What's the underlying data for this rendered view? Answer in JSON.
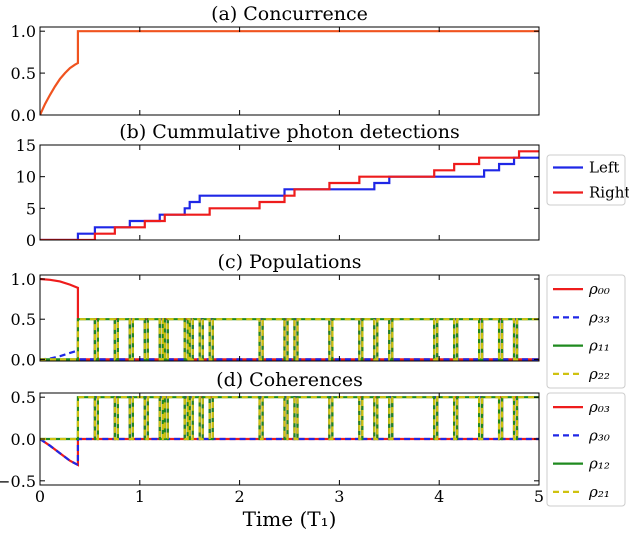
{
  "colors": {
    "orange": "#f0531f",
    "blue": "#1f27e6",
    "red": "#ee1c1c",
    "green": "#1f8a1f",
    "yellow": "#cfc210"
  },
  "xaxis": {
    "label": "Time (T₁)",
    "xlim": [
      0,
      5
    ],
    "ticks": [
      0,
      1,
      2,
      3,
      4,
      5
    ],
    "tick_labels": [
      "0",
      "1",
      "2",
      "3",
      "4",
      "5"
    ]
  },
  "chart_data": [
    {
      "id": "a",
      "type": "line",
      "title": "(a) Concurrence",
      "ylim": [
        0,
        1.05
      ],
      "yticks": [
        0,
        0.5,
        1
      ],
      "ytick_labels": [
        "0.0",
        "0.5",
        "1.0"
      ],
      "legend": null,
      "series": [
        {
          "key": "concurrence",
          "color_key": "orange",
          "dash": "solid",
          "x": [
            0,
            0.05,
            0.1,
            0.15,
            0.2,
            0.25,
            0.3,
            0.35,
            0.38,
            0.38,
            5
          ],
          "y": [
            0,
            0.13,
            0.24,
            0.34,
            0.43,
            0.5,
            0.56,
            0.6,
            0.62,
            1.0,
            1.0
          ]
        }
      ]
    },
    {
      "id": "b",
      "type": "line",
      "title": "(b) Cummulative photon detections",
      "ylim": [
        0,
        15
      ],
      "yticks": [
        0,
        5,
        10,
        15
      ],
      "ytick_labels": [
        "0",
        "5",
        "10",
        "15"
      ],
      "legend": {
        "placement": "outside-right"
      },
      "series": [
        {
          "name": "Left",
          "color_key": "blue",
          "dash": "solid",
          "steps": [
            0.38,
            0.55,
            0.9,
            1.2,
            1.45,
            1.5,
            1.6,
            2.45,
            3.35,
            3.5,
            4.45,
            4.6,
            4.75
          ]
        },
        {
          "name": "Right",
          "color_key": "red",
          "dash": "solid",
          "steps": [
            0.55,
            0.75,
            1.05,
            1.25,
            1.7,
            2.2,
            2.45,
            2.55,
            2.9,
            3.2,
            3.95,
            4.15,
            4.4,
            4.8
          ]
        }
      ]
    },
    {
      "id": "c",
      "type": "line",
      "title": "(c) Populations",
      "ylim": [
        -0.02,
        1.05
      ],
      "yticks": [
        0,
        0.5,
        1
      ],
      "ytick_labels": [
        "0.0",
        "0.5",
        "1.0"
      ],
      "legend": {
        "placement": "outside-right"
      },
      "series": [
        {
          "name": "ρ₀₀",
          "color_key": "red",
          "dash": "solid",
          "x": [
            0,
            0.1,
            0.2,
            0.3,
            0.38,
            0.38
          ],
          "y": [
            1.0,
            0.99,
            0.97,
            0.93,
            0.89,
            0.0
          ],
          "tail": "low"
        },
        {
          "name": "ρ₃₃",
          "color_key": "blue",
          "dash": "dash",
          "x": [
            0,
            0.1,
            0.2,
            0.3,
            0.38,
            0.38
          ],
          "y": [
            0.0,
            0.01,
            0.04,
            0.08,
            0.11,
            0.0
          ],
          "tail": "low"
        },
        {
          "name": "ρ₁₁",
          "color_key": "green",
          "dash": "solid",
          "x": [
            0,
            0.38,
            0.38
          ],
          "y": [
            0,
            0,
            0.5
          ],
          "tail": "high"
        },
        {
          "name": "ρ₂₂",
          "color_key": "yellow",
          "dash": "dash",
          "x": [
            0,
            0.38,
            0.38
          ],
          "y": [
            0,
            0,
            0.5
          ],
          "tail": "high"
        }
      ]
    },
    {
      "id": "d",
      "type": "line",
      "title": "(d) Coherences",
      "ylim": [
        -0.55,
        0.55
      ],
      "yticks": [
        -0.5,
        0,
        0.5
      ],
      "ytick_labels": [
        "−0.5",
        "0.0",
        "0.5"
      ],
      "legend": {
        "placement": "outside-right"
      },
      "series": [
        {
          "name": "ρ₀₃",
          "color_key": "red",
          "dash": "solid",
          "x": [
            0,
            0.1,
            0.2,
            0.3,
            0.38,
            0.38
          ],
          "y": [
            0,
            -0.08,
            -0.17,
            -0.26,
            -0.31,
            0
          ],
          "tail": "low"
        },
        {
          "name": "ρ₃₀",
          "color_key": "blue",
          "dash": "dash",
          "x": [
            0,
            0.1,
            0.2,
            0.3,
            0.38,
            0.38
          ],
          "y": [
            0,
            -0.08,
            -0.17,
            -0.26,
            -0.31,
            0
          ],
          "tail": "low"
        },
        {
          "name": "ρ₁₂",
          "color_key": "green",
          "dash": "solid",
          "x": [
            0,
            0.38,
            0.38
          ],
          "y": [
            0,
            0,
            0.5
          ],
          "tail": "high"
        },
        {
          "name": "ρ₂₁",
          "color_key": "yellow",
          "dash": "dash",
          "x": [
            0,
            0.38,
            0.38
          ],
          "y": [
            0,
            0,
            0.5
          ],
          "tail": "high"
        }
      ]
    }
  ],
  "jump_pulses": [
    [
      0.55,
      0.58
    ],
    [
      0.75,
      0.78
    ],
    [
      0.9,
      0.93
    ],
    [
      1.05,
      1.08
    ],
    [
      1.2,
      1.23
    ],
    [
      1.25,
      1.28
    ],
    [
      1.45,
      1.48
    ],
    [
      1.5,
      1.53
    ],
    [
      1.6,
      1.63
    ],
    [
      1.7,
      1.73
    ],
    [
      2.2,
      2.23
    ],
    [
      2.45,
      2.48
    ],
    [
      2.55,
      2.58
    ],
    [
      2.9,
      2.93
    ],
    [
      3.2,
      3.23
    ],
    [
      3.35,
      3.38
    ],
    [
      3.5,
      3.53
    ],
    [
      3.95,
      3.98
    ],
    [
      4.15,
      4.18
    ],
    [
      4.4,
      4.43
    ],
    [
      4.6,
      4.63
    ],
    [
      4.75,
      4.78
    ]
  ]
}
